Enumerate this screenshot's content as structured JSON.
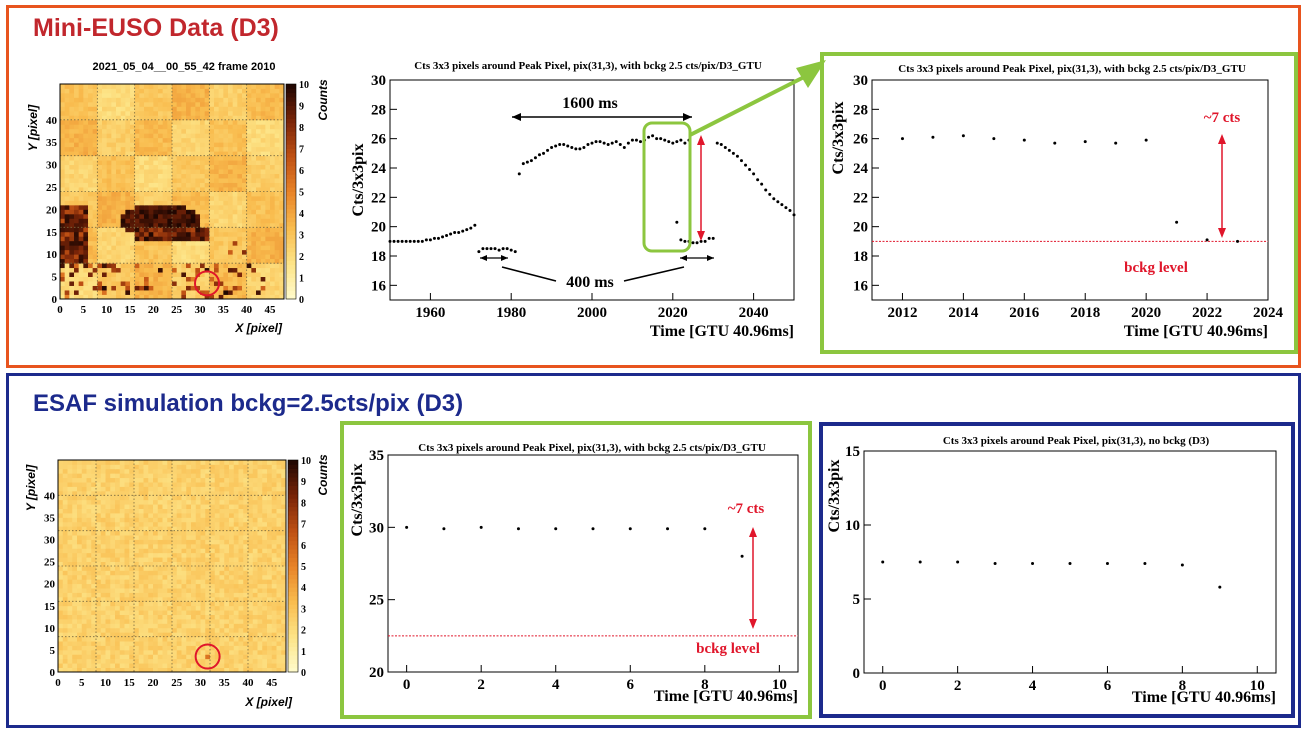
{
  "top": {
    "title": "Mini-EUSO Data (D3)",
    "colors": {
      "border": "#e8541e",
      "title": "#c1272d"
    }
  },
  "bottom": {
    "title": "ESAF simulation bckg=2.5cts/pix (D3)",
    "colors": {
      "border": "#1c2a8c",
      "title": "#1c2a8c"
    }
  },
  "accent_colors": {
    "green_frame": "#8cc63f",
    "blue_frame": "#1c2a8c",
    "red_annotation": "#e0162b"
  },
  "chart_data": [
    {
      "id": "heatmap-data",
      "type": "heatmap",
      "title": "2021_05_04__00_55_42 frame 2010",
      "xlabel": "X [pixel]",
      "ylabel": "Y [pixel]",
      "colorbar_label": "Counts",
      "x_ticks": [
        "0",
        "5",
        "10",
        "15",
        "20",
        "25",
        "30",
        "35",
        "40",
        "45"
      ],
      "y_ticks": [
        "0",
        "5",
        "10",
        "15",
        "20",
        "25",
        "30",
        "35",
        "40"
      ],
      "colorbar_ticks": [
        "0",
        "1",
        "2",
        "3",
        "4",
        "5",
        "6",
        "7",
        "8",
        "9",
        "10"
      ],
      "xlim": [
        0,
        48
      ],
      "ylim": [
        0,
        48
      ],
      "zlim": [
        0,
        10
      ],
      "marker": {
        "x": 31,
        "y": 3
      }
    },
    {
      "id": "timeline",
      "type": "scatter",
      "title": "Cts 3x3 pixels around Peak Pixel, pix(31,3), with bckg 2.5 cts/pix/D3_GTU",
      "xlabel": "Time [GTU 40.96ms]",
      "ylabel": "Cts/3x3pix",
      "xlim": [
        1950,
        2050
      ],
      "ylim": [
        15,
        30
      ],
      "x_ticks": [
        1960,
        1980,
        2000,
        2020,
        2040
      ],
      "y_ticks": [
        16,
        18,
        20,
        22,
        24,
        26,
        28,
        30
      ],
      "segments": [
        {
          "x_start": 1950,
          "x_end": 1971,
          "y": [
            19.0,
            19.0,
            19.0,
            19.0,
            19.0,
            19.0,
            19.0,
            19.0,
            19.0,
            19.1,
            19.1,
            19.2,
            19.2,
            19.3,
            19.4,
            19.5,
            19.6,
            19.6,
            19.7,
            19.8,
            19.9,
            20.1
          ]
        },
        {
          "x_start": 1972,
          "x_end": 1981,
          "y": [
            18.3,
            18.5,
            18.5,
            18.5,
            18.5,
            18.4,
            18.5,
            18.5,
            18.4,
            18.3
          ]
        },
        {
          "x_start": 1982,
          "x_end": 2024,
          "y": [
            23.6,
            24.3,
            24.4,
            24.5,
            24.7,
            24.9,
            25.0,
            25.2,
            25.4,
            25.5,
            25.6,
            25.6,
            25.5,
            25.4,
            25.3,
            25.3,
            25.4,
            25.6,
            25.7,
            25.8,
            25.8,
            25.7,
            25.6,
            25.7,
            25.8,
            25.6,
            25.4,
            25.7,
            25.9,
            25.9,
            25.8,
            25.9,
            26.1,
            26.2,
            26.0,
            26.0,
            25.9,
            25.8,
            25.7,
            25.8,
            25.9,
            25.7,
            25.9
          ]
        },
        {
          "x_start": 2021,
          "x_end": 2030,
          "y": [
            20.3,
            19.1,
            19.0,
            19.0,
            18.9,
            18.9,
            19.0,
            19.0,
            19.2,
            19.2
          ]
        },
        {
          "x_start": 2031,
          "x_end": 2050,
          "y": [
            25.7,
            25.6,
            25.4,
            25.2,
            25.0,
            24.8,
            24.5,
            24.2,
            23.9,
            23.6,
            23.2,
            22.9,
            22.5,
            22.2,
            21.9,
            21.7,
            21.5,
            21.3,
            21.1,
            20.8
          ]
        }
      ],
      "annotations": {
        "duration_long": "1600 ms",
        "duration_short": "400 ms"
      }
    },
    {
      "id": "zoom-data",
      "type": "scatter",
      "title": "Cts 3x3 pixels around Peak Pixel, pix(31,3), with bckg 2.5 cts/pix/D3_GTU",
      "xlabel": "Time [GTU 40.96ms]",
      "ylabel": "Cts/3x3pix",
      "xlim": [
        2011,
        2024
      ],
      "ylim": [
        15,
        30
      ],
      "x_ticks": [
        2012,
        2014,
        2016,
        2018,
        2020,
        2022,
        2024
      ],
      "y_ticks": [
        16,
        18,
        20,
        22,
        24,
        26,
        28,
        30
      ],
      "x": [
        2012,
        2013,
        2014,
        2015,
        2016,
        2017,
        2018,
        2019,
        2020,
        2021,
        2022,
        2023
      ],
      "y": [
        26.0,
        26.1,
        26.2,
        26.0,
        25.9,
        25.7,
        25.8,
        25.7,
        25.9,
        20.3,
        19.1,
        19.0
      ],
      "bckg_level": 19.0,
      "annotations": {
        "delta": "~7 cts",
        "bckg": "bckg level"
      }
    },
    {
      "id": "heatmap-sim",
      "type": "heatmap",
      "xlabel": "X [pixel]",
      "ylabel": "Y [pixel]",
      "colorbar_label": "Counts",
      "x_ticks": [
        "0",
        "5",
        "10",
        "15",
        "20",
        "25",
        "30",
        "35",
        "40",
        "45"
      ],
      "y_ticks": [
        "0",
        "5",
        "10",
        "15",
        "20",
        "25",
        "30",
        "35",
        "40"
      ],
      "colorbar_ticks": [
        "0",
        "1",
        "2",
        "3",
        "4",
        "5",
        "6",
        "7",
        "8",
        "9",
        "10"
      ],
      "xlim": [
        0,
        48
      ],
      "ylim": [
        0,
        48
      ],
      "zlim": [
        0,
        10
      ],
      "marker": {
        "x": 31,
        "y": 3
      }
    },
    {
      "id": "sim-bckg",
      "type": "scatter",
      "title": "Cts 3x3 pixels around Peak Pixel, pix(31,3), with bckg 2.5 cts/pix/D3_GTU",
      "xlabel": "Time [GTU 40.96ms]",
      "ylabel": "Cts/3x3pix",
      "xlim": [
        -0.5,
        10.5
      ],
      "ylim": [
        20,
        35
      ],
      "x_ticks": [
        0,
        2,
        4,
        6,
        8,
        10
      ],
      "y_ticks": [
        20,
        25,
        30,
        35
      ],
      "x": [
        0,
        1,
        2,
        3,
        4,
        5,
        6,
        7,
        8,
        9
      ],
      "y": [
        30.0,
        29.9,
        30.0,
        29.9,
        29.9,
        29.9,
        29.9,
        29.9,
        29.9,
        28.0
      ],
      "bckg_level": 22.5,
      "annotations": {
        "delta": "~7 cts",
        "bckg": "bckg level"
      }
    },
    {
      "id": "sim-nobckg",
      "type": "scatter",
      "title": "Cts 3x3 pixels around Peak Pixel, pix(31,3), no bckg (D3)",
      "xlabel": "Time [GTU 40.96ms]",
      "ylabel": "Cts/3x3pix",
      "xlim": [
        -0.5,
        10.5
      ],
      "ylim": [
        0,
        15
      ],
      "x_ticks": [
        0,
        2,
        4,
        6,
        8,
        10
      ],
      "y_ticks": [
        0,
        5,
        10,
        15
      ],
      "x": [
        0,
        1,
        2,
        3,
        4,
        5,
        6,
        7,
        8,
        9
      ],
      "y": [
        7.5,
        7.5,
        7.5,
        7.4,
        7.4,
        7.4,
        7.4,
        7.4,
        7.3,
        5.8
      ]
    }
  ]
}
